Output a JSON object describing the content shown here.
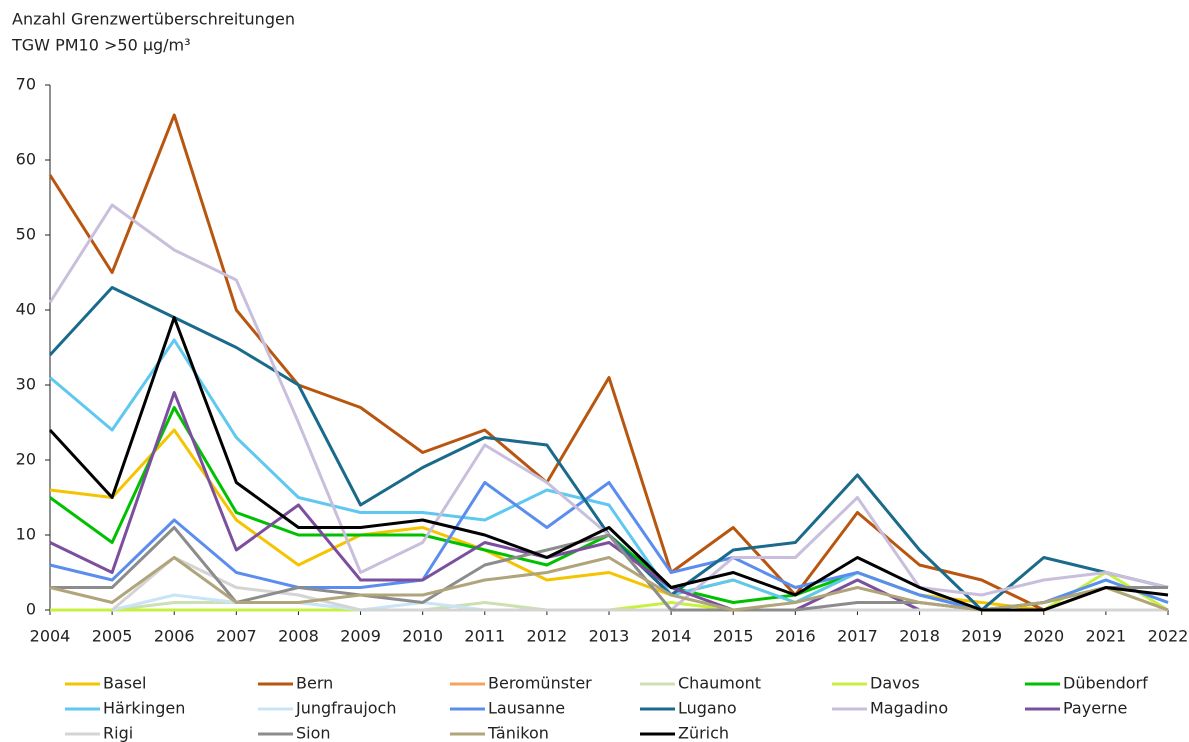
{
  "chart_data": {
    "type": "line",
    "title": "Anzahl Grenzwertüberschreitungen",
    "subtitle": "TGW PM10  >50 µg/m³",
    "categories": [
      "2004",
      "2005",
      "2006",
      "2007",
      "2008",
      "2009",
      "2010",
      "2011",
      "2012",
      "2013",
      "2014",
      "2015",
      "2016",
      "2017",
      "2018",
      "2019",
      "2020",
      "2021",
      "2022"
    ],
    "ylim": [
      0,
      70
    ],
    "yticks": [
      0,
      10,
      20,
      30,
      40,
      50,
      60,
      70
    ],
    "grid": false,
    "series": [
      {
        "name": "Basel",
        "color": "#f5c400",
        "values": [
          16,
          15,
          24,
          12,
          6,
          10,
          11,
          8,
          4,
          5,
          2,
          4,
          1,
          5,
          2,
          1,
          0,
          3,
          0
        ]
      },
      {
        "name": "Bern",
        "color": "#b8560f",
        "values": [
          58,
          45,
          66,
          40,
          30,
          27,
          21,
          24,
          17,
          31,
          5,
          11,
          2,
          13,
          6,
          4,
          0,
          3,
          3
        ]
      },
      {
        "name": "Beromünster",
        "color": "#f4a460",
        "values": [
          null,
          null,
          null,
          null,
          null,
          null,
          null,
          null,
          null,
          null,
          null,
          null,
          0,
          0,
          0,
          0,
          0,
          3,
          3
        ]
      },
      {
        "name": "Chaumont",
        "color": "#cde0b4",
        "values": [
          0,
          0,
          1,
          1,
          1,
          0,
          0,
          1,
          0,
          0,
          0,
          0,
          0,
          0,
          0,
          0,
          0,
          0,
          0
        ]
      },
      {
        "name": "Davos",
        "color": "#c8f040",
        "values": [
          0,
          0,
          0,
          0,
          0,
          0,
          0,
          0,
          0,
          0,
          1,
          0,
          0,
          0,
          0,
          0,
          0,
          5,
          0
        ]
      },
      {
        "name": "Dübendorf",
        "color": "#00c000",
        "values": [
          15,
          9,
          27,
          13,
          10,
          10,
          10,
          8,
          6,
          10,
          3,
          1,
          2,
          5,
          2,
          0,
          1,
          3,
          3
        ]
      },
      {
        "name": "Härkingen",
        "color": "#5ec8f0",
        "values": [
          31,
          24,
          36,
          23,
          15,
          13,
          13,
          12,
          16,
          14,
          2,
          4,
          1,
          5,
          2,
          0,
          1,
          4,
          1
        ]
      },
      {
        "name": "Jungfraujoch",
        "color": "#c8e4f5",
        "values": [
          null,
          0,
          2,
          1,
          1,
          0,
          1,
          0,
          0,
          0,
          0,
          0,
          0,
          0,
          0,
          0,
          0,
          0,
          0
        ]
      },
      {
        "name": "Lausanne",
        "color": "#5b8def",
        "values": [
          6,
          4,
          12,
          5,
          3,
          3,
          4,
          17,
          11,
          17,
          5,
          7,
          3,
          5,
          2,
          0,
          1,
          4,
          1
        ]
      },
      {
        "name": "Lugano",
        "color": "#1a6a8c",
        "values": [
          34,
          43,
          39,
          35,
          30,
          14,
          19,
          23,
          22,
          10,
          2,
          8,
          9,
          18,
          8,
          0,
          7,
          5,
          3
        ]
      },
      {
        "name": "Magadino",
        "color": "#c9bfdc",
        "values": [
          41,
          54,
          48,
          44,
          25,
          5,
          9,
          22,
          17,
          10,
          0,
          7,
          7,
          15,
          3,
          2,
          4,
          5,
          3
        ]
      },
      {
        "name": "Payerne",
        "color": "#7b4f9d",
        "values": [
          9,
          5,
          29,
          8,
          14,
          4,
          4,
          9,
          7,
          9,
          3,
          0,
          0,
          4,
          0,
          null,
          null,
          null,
          null
        ]
      },
      {
        "name": "Rigi",
        "color": "#d4d4d4",
        "values": [
          null,
          0,
          7,
          3,
          2,
          0,
          0,
          0,
          0,
          0,
          0,
          0,
          0,
          0,
          0,
          0,
          0,
          0,
          0
        ]
      },
      {
        "name": "Sion",
        "color": "#8c8c8c",
        "values": [
          3,
          3,
          11,
          1,
          3,
          2,
          1,
          6,
          8,
          10,
          0,
          0,
          0,
          1,
          1,
          0,
          0,
          3,
          3
        ]
      },
      {
        "name": "Tänikon",
        "color": "#b0a47a",
        "values": [
          3,
          1,
          7,
          1,
          1,
          2,
          2,
          4,
          5,
          7,
          2,
          0,
          1,
          3,
          1,
          0,
          1,
          3,
          0
        ]
      },
      {
        "name": "Zürich",
        "color": "#000000",
        "values": [
          24,
          15,
          39,
          17,
          11,
          11,
          12,
          10,
          7,
          11,
          3,
          5,
          2,
          7,
          3,
          0,
          0,
          3,
          2
        ]
      }
    ]
  }
}
